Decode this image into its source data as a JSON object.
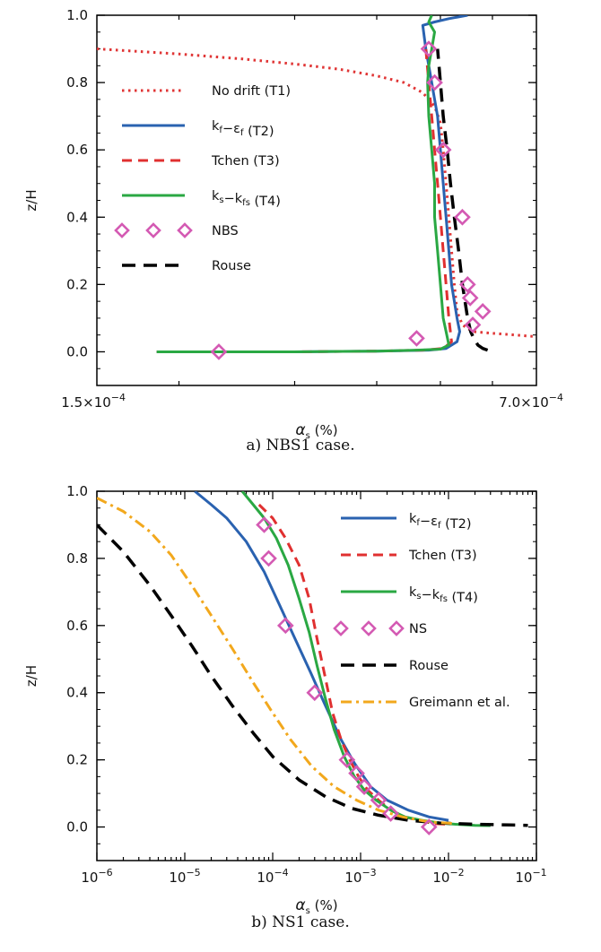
{
  "chart_data": [
    {
      "id": "a",
      "type": "line",
      "caption": "a) NBS1 case.",
      "xlabel": "α_s (%)",
      "ylabel": "z/H",
      "xscale": "log",
      "xlim": [
        0.00015,
        0.0007
      ],
      "ylim": [
        -0.1,
        1.0
      ],
      "xtick_labels": [
        {
          "value": 0.00015,
          "base": "1.5×10",
          "exp": "−4"
        },
        {
          "value": 0.0007,
          "base": "7.0×10",
          "exp": "−4"
        }
      ],
      "xminor": [
        0.0002,
        0.0003,
        0.0004,
        0.0005,
        0.0006
      ],
      "yticks": [
        0.0,
        0.2,
        0.4,
        0.6,
        0.8,
        1.0
      ],
      "ytick_labels": [
        "0.0",
        "0.2",
        "0.4",
        "0.6",
        "0.8",
        "1.0"
      ],
      "legend_position": "left",
      "series": [
        {
          "name": "No drift (T1)",
          "label": [
            "No drift (T1)"
          ],
          "color": "#e03535",
          "dash": "2.5,4.5",
          "width": 3,
          "x": [
            0.00015,
            0.0002,
            0.00025,
            0.0003,
            0.00035,
            0.0004,
            0.00044,
            0.00047,
            0.00049,
            0.0005,
            0.000505,
            0.00051,
            0.000515,
            0.00052,
            0.000525,
            0.00053,
            0.00054,
            0.00056,
            0.0006,
            0.00065,
            0.0007
          ],
          "y": [
            0.9,
            0.885,
            0.87,
            0.855,
            0.84,
            0.82,
            0.8,
            0.77,
            0.73,
            0.68,
            0.6,
            0.5,
            0.4,
            0.3,
            0.2,
            0.12,
            0.08,
            0.06,
            0.055,
            0.05,
            0.045
          ]
        },
        {
          "name": "kf–εf (T2)",
          "label": [
            "k",
            "f",
            "−ε",
            "f",
            " (T2)"
          ],
          "color": "#2a62b0",
          "dash": "",
          "width": 3,
          "x": [
            0.000185,
            0.0003,
            0.0004,
            0.00048,
            0.00051,
            0.00053,
            0.000535,
            0.00053,
            0.000525,
            0.00052,
            0.000515,
            0.00051,
            0.000505,
            0.0005,
            0.000495,
            0.00049,
            0.000485,
            0.00048,
            0.000475,
            0.00047,
            0.00049,
            0.000515,
            0.00055
          ],
          "y": [
            0.0,
            0.0,
            0.002,
            0.005,
            0.01,
            0.03,
            0.06,
            0.1,
            0.15,
            0.2,
            0.3,
            0.4,
            0.5,
            0.6,
            0.7,
            0.75,
            0.8,
            0.85,
            0.9,
            0.97,
            0.98,
            0.99,
            1.0
          ]
        },
        {
          "name": "Tchen (T3)",
          "label": [
            "Tchen (T3)"
          ],
          "color": "#e03030",
          "dash": "11,7",
          "width": 3,
          "x": [
            0.000185,
            0.0003,
            0.0004,
            0.00047,
            0.000505,
            0.00052,
            0.000515,
            0.00051,
            0.000505,
            0.0005,
            0.000495,
            0.00049,
            0.000485,
            0.00048,
            0.000475
          ],
          "y": [
            0.0,
            0.0,
            0.002,
            0.005,
            0.01,
            0.03,
            0.1,
            0.2,
            0.3,
            0.4,
            0.5,
            0.6,
            0.7,
            0.8,
            0.9
          ]
        },
        {
          "name": "ks–kfs (T4)",
          "label": [
            "k",
            "s",
            "−k",
            "fs",
            " (T4)"
          ],
          "color": "#2aa843",
          "dash": "",
          "width": 3,
          "x": [
            0.000185,
            0.0003,
            0.0004,
            0.00046,
            0.0005,
            0.000515,
            0.00051,
            0.000505,
            0.0005,
            0.000495,
            0.00049,
            0.00049,
            0.000485,
            0.00048,
            0.000478,
            0.00048,
            0.000485,
            0.00049,
            0.00048,
            0.000485
          ],
          "y": [
            0.0,
            0.0,
            0.002,
            0.005,
            0.008,
            0.02,
            0.06,
            0.1,
            0.2,
            0.3,
            0.4,
            0.5,
            0.6,
            0.7,
            0.8,
            0.85,
            0.9,
            0.95,
            0.98,
            1.0
          ]
        },
        {
          "name": "NBS",
          "label": [
            "NBS"
          ],
          "color": "#d45ab3",
          "marker": "diamond",
          "x": [
            0.00023,
            0.00046,
            0.00048,
            0.00049,
            0.000505,
            0.00054,
            0.00055,
            0.000555,
            0.00056,
            0.00058
          ],
          "y": [
            0.0,
            0.04,
            0.9,
            0.8,
            0.6,
            0.4,
            0.2,
            0.16,
            0.08,
            0.12
          ]
        },
        {
          "name": "Rouse",
          "label": [
            "Rouse"
          ],
          "color": "#000000",
          "dash": "15,9",
          "width": 3.5,
          "x": [
            0.00059,
            0.00058,
            0.00057,
            0.000562,
            0.000556,
            0.00055,
            0.000545,
            0.00054,
            0.000533,
            0.000525,
            0.000518,
            0.000512,
            0.000505,
            0.0005,
            0.000495
          ],
          "y": [
            0.005,
            0.01,
            0.02,
            0.04,
            0.06,
            0.1,
            0.15,
            0.2,
            0.3,
            0.4,
            0.5,
            0.6,
            0.7,
            0.8,
            0.9
          ]
        }
      ]
    },
    {
      "id": "b",
      "type": "line",
      "caption": "b) NS1 case.",
      "xlabel": "α_s (%)",
      "ylabel": "z/H",
      "xscale": "log",
      "xlim": [
        1e-06,
        0.1
      ],
      "ylim": [
        -0.1,
        1.0
      ],
      "xtick_labels": [
        {
          "value": 1e-06,
          "base": "10",
          "exp": "−6"
        },
        {
          "value": 1e-05,
          "base": "10",
          "exp": "−5"
        },
        {
          "value": 0.0001,
          "base": "10",
          "exp": "−4"
        },
        {
          "value": 0.001,
          "base": "10",
          "exp": "−3"
        },
        {
          "value": 0.01,
          "base": "10",
          "exp": "−2"
        },
        {
          "value": 0.1,
          "base": "10",
          "exp": "−1"
        }
      ],
      "yticks": [
        0.0,
        0.2,
        0.4,
        0.6,
        0.8,
        1.0
      ],
      "ytick_labels": [
        "0.0",
        "0.2",
        "0.4",
        "0.6",
        "0.8",
        "1.0"
      ],
      "legend_position": "right",
      "series": [
        {
          "name": "kf–εf (T2)",
          "label": [
            "k",
            "f",
            "−ε",
            "f",
            " (T2)"
          ],
          "color": "#2a62b0",
          "dash": "",
          "width": 3,
          "x": [
            1.3e-05,
            2e-05,
            3e-05,
            5e-05,
            8e-05,
            0.00012,
            0.00018,
            0.00027,
            0.0004,
            0.0006,
            0.00085,
            0.0013,
            0.002,
            0.0035,
            0.006,
            0.01
          ],
          "y": [
            1.0,
            0.96,
            0.92,
            0.85,
            0.76,
            0.66,
            0.56,
            0.46,
            0.36,
            0.26,
            0.19,
            0.12,
            0.08,
            0.05,
            0.03,
            0.02
          ]
        },
        {
          "name": "Tchen (T3)",
          "label": [
            "Tchen (T3)"
          ],
          "color": "#e03030",
          "dash": "11,7",
          "width": 3,
          "x": [
            7e-05,
            0.0001,
            0.00014,
            0.0002,
            0.00026,
            0.00032,
            0.0004,
            0.00048,
            0.0006,
            0.00075,
            0.00095,
            0.0012,
            0.0016,
            0.0022,
            0.0032,
            0.0045,
            0.007,
            0.01
          ],
          "y": [
            0.96,
            0.92,
            0.86,
            0.78,
            0.68,
            0.56,
            0.44,
            0.34,
            0.26,
            0.2,
            0.15,
            0.11,
            0.08,
            0.05,
            0.03,
            0.02,
            0.01,
            0.008
          ]
        },
        {
          "name": "ks–kfs (T4)",
          "label": [
            "k",
            "s",
            "−k",
            "fs",
            " (T4)"
          ],
          "color": "#2aa843",
          "dash": "",
          "width": 3,
          "x": [
            4.5e-05,
            6e-05,
            8e-05,
            0.00011,
            0.00015,
            0.0002,
            0.00026,
            0.00032,
            0.0004,
            0.0005,
            0.00065,
            0.00085,
            0.0011,
            0.0015,
            0.0022,
            0.0032,
            0.005,
            0.008,
            0.012,
            0.02,
            0.03
          ],
          "y": [
            1.0,
            0.96,
            0.92,
            0.86,
            0.78,
            0.68,
            0.58,
            0.48,
            0.38,
            0.29,
            0.21,
            0.15,
            0.11,
            0.08,
            0.05,
            0.03,
            0.02,
            0.012,
            0.008,
            0.005,
            0.004
          ]
        },
        {
          "name": "NS",
          "label": [
            "NS"
          ],
          "color": "#d45ab3",
          "marker": "diamond",
          "x": [
            8e-05,
            9e-05,
            0.00014,
            0.0003,
            0.0007,
            0.0009,
            0.0011,
            0.0016,
            0.0022,
            0.006
          ],
          "y": [
            0.9,
            0.8,
            0.6,
            0.4,
            0.2,
            0.16,
            0.12,
            0.08,
            0.04,
            0.0
          ]
        },
        {
          "name": "Rouse",
          "label": [
            "Rouse"
          ],
          "color": "#000000",
          "dash": "15,9",
          "width": 3.5,
          "x": [
            1e-06,
            2e-06,
            4e-06,
            7e-06,
            1.2e-05,
            2e-05,
            3.5e-05,
            6e-05,
            0.0001,
            0.0002,
            0.0004,
            0.0008,
            0.0016,
            0.0035,
            0.008,
            0.02,
            0.05,
            0.08
          ],
          "y": [
            0.9,
            0.82,
            0.72,
            0.63,
            0.54,
            0.45,
            0.36,
            0.28,
            0.21,
            0.14,
            0.09,
            0.055,
            0.035,
            0.02,
            0.012,
            0.008,
            0.006,
            0.005
          ]
        },
        {
          "name": "Greimann et al.",
          "label": [
            "Greimann et al."
          ],
          "color": "#f2a81d",
          "dash": "12,5,3,5",
          "width": 3,
          "x": [
            1e-06,
            2e-06,
            4e-06,
            7e-06,
            1.2e-05,
            2e-05,
            3.5e-05,
            6e-05,
            0.0001,
            0.00016,
            0.00028,
            0.0005,
            0.0009,
            0.0016,
            0.003,
            0.006,
            0.012
          ],
          "y": [
            0.98,
            0.94,
            0.88,
            0.81,
            0.72,
            0.63,
            0.53,
            0.43,
            0.34,
            0.26,
            0.18,
            0.12,
            0.08,
            0.05,
            0.03,
            0.015,
            0.01
          ]
        }
      ]
    }
  ]
}
